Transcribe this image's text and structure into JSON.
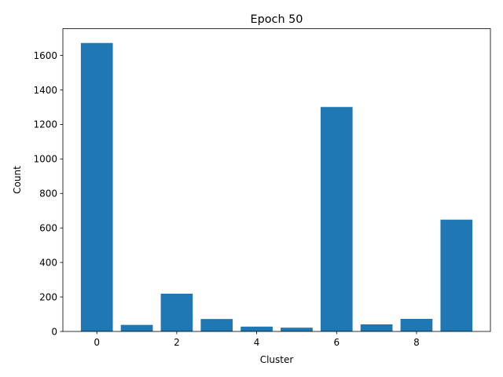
{
  "chart_data": {
    "type": "bar",
    "title": "Epoch 50",
    "xlabel": "Cluster",
    "ylabel": "Count",
    "x": [
      0,
      1,
      2,
      3,
      4,
      5,
      6,
      7,
      8,
      9
    ],
    "values": [
      1672,
      38,
      219,
      72,
      28,
      22,
      1301,
      41,
      73,
      648
    ],
    "xlim": [
      -0.85,
      9.85
    ],
    "ylim": [
      0,
      1755
    ],
    "xticks": [
      0,
      2,
      4,
      6,
      8
    ],
    "yticks": [
      0,
      200,
      400,
      600,
      800,
      1000,
      1200,
      1400,
      1600
    ],
    "bar_color": "#1f77b4",
    "grid": false,
    "legend": false
  }
}
